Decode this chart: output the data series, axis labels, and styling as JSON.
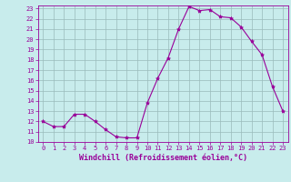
{
  "hours": [
    0,
    1,
    2,
    3,
    4,
    5,
    6,
    7,
    8,
    9,
    10,
    11,
    12,
    13,
    14,
    15,
    16,
    17,
    18,
    19,
    20,
    21,
    22,
    23
  ],
  "values": [
    12.0,
    11.5,
    11.5,
    12.7,
    12.7,
    12.0,
    11.2,
    10.5,
    10.4,
    10.4,
    13.8,
    16.2,
    18.2,
    21.0,
    23.2,
    22.8,
    22.9,
    22.2,
    22.1,
    21.2,
    19.8,
    18.5,
    15.4,
    13.0
  ],
  "line_color": "#990099",
  "marker": "*",
  "marker_size": 3,
  "bg_color": "#c8ecec",
  "grid_color": "#99bbbb",
  "ylim": [
    10,
    23
  ],
  "yticks": [
    10,
    11,
    12,
    13,
    14,
    15,
    16,
    17,
    18,
    19,
    20,
    21,
    22,
    23
  ],
  "xlabel": "Windchill (Refroidissement éolien,°C)",
  "xlabel_color": "#990099",
  "tick_color": "#990099",
  "axis_color": "#990099",
  "xlim": [
    -0.5,
    23.5
  ],
  "xticks": [
    0,
    1,
    2,
    3,
    4,
    5,
    6,
    7,
    8,
    9,
    10,
    11,
    12,
    13,
    14,
    15,
    16,
    17,
    18,
    19,
    20,
    21,
    22,
    23
  ],
  "tick_fontsize": 5,
  "xlabel_fontsize": 6,
  "linewidth": 0.8
}
